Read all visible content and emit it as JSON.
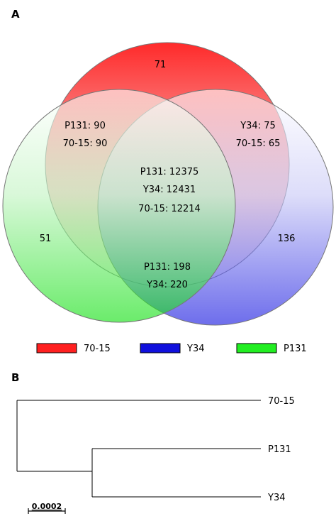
{
  "panel_a": {
    "label": "A",
    "venn": {
      "colors": {
        "70-15": "#ff0000",
        "Y34": "#0000ff",
        "P131": "#00ff00"
      },
      "regions": {
        "only_70_15": "71",
        "p131_70_15_line1": "P131: 90",
        "p131_70_15_line2": "70-15: 90",
        "y34_70_15_line1": "Y34: 75",
        "y34_70_15_line2": "70-15: 65",
        "center_line1": "P131: 12375",
        "center_line2": "Y34: 12431",
        "center_line3": "70-15: 12214",
        "only_p131": "51",
        "only_y34": "136",
        "p131_y34_line1": "P131: 198",
        "p131_y34_line2": "Y34: 220"
      }
    },
    "legend": [
      {
        "label": "70-15",
        "color": "#ff2020"
      },
      {
        "label": "Y34",
        "color": "#1010dd"
      },
      {
        "label": "P131",
        "color": "#22ee22"
      }
    ]
  },
  "panel_b": {
    "label": "B",
    "tree": {
      "leaves": [
        "70-15",
        "P131",
        "Y34"
      ],
      "scale_label": "0.0002"
    }
  }
}
